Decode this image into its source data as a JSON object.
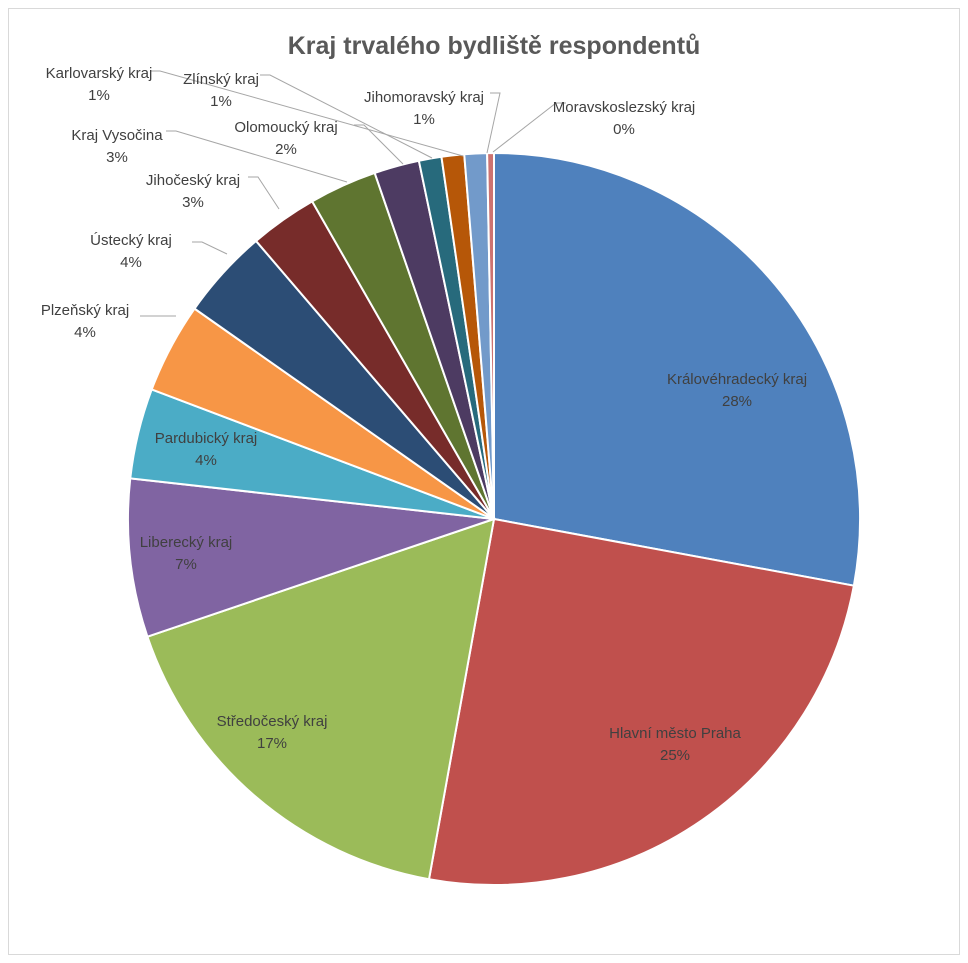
{
  "chart_data": {
    "type": "pie",
    "title": "Kraj trvalého bydliště respondentů",
    "slices": [
      {
        "label": "Královéhradecký kraj",
        "value": 28,
        "pct_label": "28%",
        "color": "#4f81bd"
      },
      {
        "label": "Hlavní město Praha",
        "value": 25,
        "pct_label": "25%",
        "color": "#c0504d"
      },
      {
        "label": "Středočeský kraj",
        "value": 17,
        "pct_label": "17%",
        "color": "#9bbb59"
      },
      {
        "label": "Liberecký kraj",
        "value": 7,
        "pct_label": "7%",
        "color": "#8064a2"
      },
      {
        "label": "Pardubický kraj",
        "value": 4,
        "pct_label": "4%",
        "color": "#4bacc6"
      },
      {
        "label": "Plzeňský kraj",
        "value": 4,
        "pct_label": "4%",
        "color": "#f79646"
      },
      {
        "label": "Ústecký kraj",
        "value": 4,
        "pct_label": "4%",
        "color": "#2c4d75"
      },
      {
        "label": "Jihočeský kraj",
        "value": 3,
        "pct_label": "3%",
        "color": "#772c2a"
      },
      {
        "label": "Kraj Vysočina",
        "value": 3,
        "pct_label": "3%",
        "color": "#5f7530"
      },
      {
        "label": "Olomoucký kraj",
        "value": 2,
        "pct_label": "2%",
        "color": "#4d3b62"
      },
      {
        "label": "Zlínský kraj",
        "value": 1,
        "pct_label": "1%",
        "color": "#276a7c"
      },
      {
        "label": "Karlovarský kraj",
        "value": 1,
        "pct_label": "1%",
        "color": "#b65708"
      },
      {
        "label": "Jihomoravský kraj",
        "value": 1,
        "pct_label": "1%",
        "color": "#729aca"
      },
      {
        "label": "Moravskoslezský kraj",
        "value": 0,
        "pct_label": "0%",
        "color": "#cd7371"
      }
    ],
    "label_text_color": "#404040",
    "leader_line_color": "#a6a6a6"
  }
}
